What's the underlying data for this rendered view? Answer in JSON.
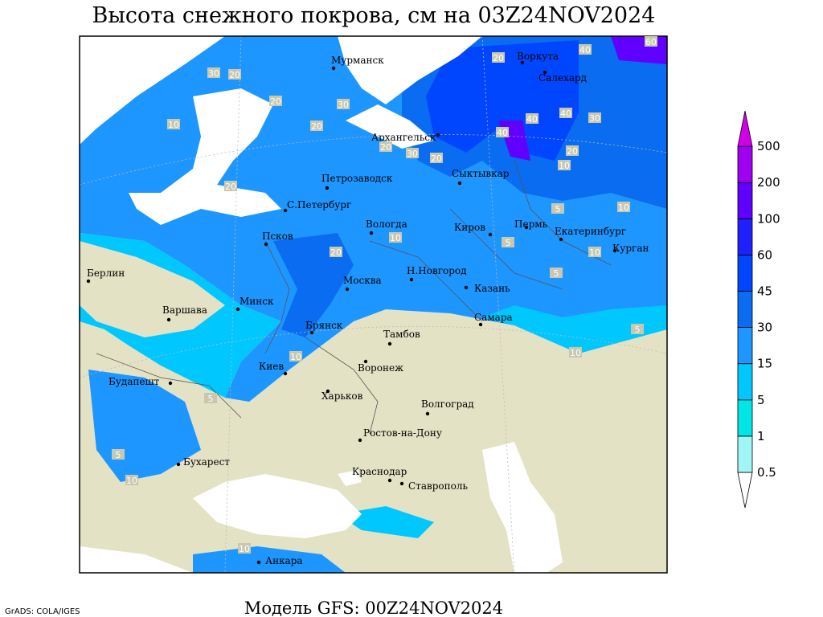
{
  "header": {
    "title": "Высота снежного покрова, см на 03Z24NOV2024"
  },
  "footer": {
    "model": "Модель GFS: 00Z24NOV2024",
    "credit": "GrADS: COLA/IGES"
  },
  "legend": {
    "levels": [
      0.5,
      1,
      5,
      15,
      30,
      45,
      60,
      100,
      200,
      500
    ],
    "colors": [
      "#ffffff",
      "#a0f5f5",
      "#00e6e6",
      "#00c8ff",
      "#1e96ff",
      "#0a6cf0",
      "#0046ff",
      "#2020ff",
      "#6000ff",
      "#a000f0",
      "#d200e6"
    ]
  },
  "cities": [
    "Мурманск",
    "Воркута",
    "Салехард",
    "Архангельск",
    "Сыктывкар",
    "Петрозаводск",
    "С.Петербург",
    "Вологда",
    "Киров",
    "Пермь",
    "Екатеринбург",
    "Курган",
    "Псков",
    "Берлин",
    "Минск",
    "Варшава",
    "Москва",
    "Н.Новгород",
    "Казань",
    "Самара",
    "Брянск",
    "Тамбов",
    "Киев",
    "Воронеж",
    "Харьков",
    "Волгоград",
    "Будапешт",
    "Ростов-на-Дону",
    "Бухарест",
    "Краснодар",
    "Ставрополь",
    "Анкара"
  ],
  "contour_labels": [
    30,
    20,
    20,
    30,
    20,
    10,
    20,
    20,
    30,
    20,
    40,
    40,
    40,
    30,
    20,
    10,
    10,
    5,
    20,
    10,
    5,
    10,
    5,
    10,
    5,
    5,
    10,
    10,
    10,
    5,
    60,
    40,
    20
  ]
}
